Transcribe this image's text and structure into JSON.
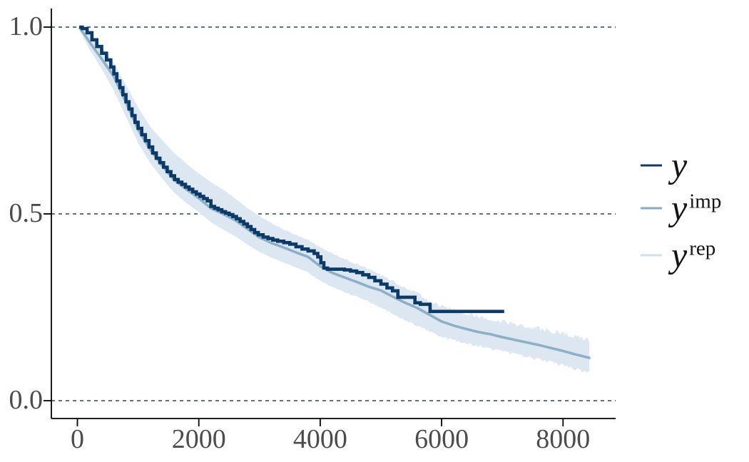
{
  "figure": {
    "background": "#ffffff",
    "axes": {
      "y": {
        "ticks": [
          {
            "label": "1.0",
            "value": 1.0
          },
          {
            "label": "0.5",
            "value": 0.5
          },
          {
            "label": "0.0",
            "value": 0.0
          }
        ]
      },
      "x": {
        "ticks": [
          {
            "label": "0",
            "value": 0
          },
          {
            "label": "2000",
            "value": 2000
          },
          {
            "label": "4000",
            "value": 4000
          },
          {
            "label": "6000",
            "value": 6000
          },
          {
            "label": "8000",
            "value": 8000
          }
        ]
      }
    },
    "legend": {
      "items": [
        {
          "base": "y",
          "sup": "",
          "color": "#16395f"
        },
        {
          "base": "y",
          "sup": "imp",
          "color": "#85aac6"
        },
        {
          "base": "y",
          "sup": "rep",
          "color": "#cfdfee"
        }
      ]
    },
    "colors": {
      "dark_line": "#0c3a68",
      "imputed_line": "#8cb0c7",
      "ribbon": "#dce7f2",
      "gridline": "#24446b",
      "axis": "#000000",
      "tick_text": "#4c4c4c"
    }
  },
  "chart_data": {
    "type": "line",
    "title": "",
    "xlabel": "",
    "ylabel": "",
    "xlim": [
      -430,
      8880
    ],
    "ylim": [
      -0.05,
      1.05
    ],
    "x_ticks": [
      0,
      2000,
      4000,
      6000,
      8000
    ],
    "y_ticks": [
      0.0,
      0.5,
      1.0
    ],
    "grid": "dashed horizontal at y = 0.0, 0.5, 1.0",
    "legend_position": "right-center",
    "series": [
      {
        "name": "y",
        "kind": "step",
        "color": "#0c3a68",
        "width": 4.6,
        "points": [
          [
            30,
            1.0
          ],
          [
            80,
            0.996
          ],
          [
            160,
            0.985
          ],
          [
            240,
            0.966
          ],
          [
            320,
            0.948
          ],
          [
            400,
            0.93
          ],
          [
            480,
            0.912
          ],
          [
            550,
            0.893
          ],
          [
            600,
            0.875
          ],
          [
            650,
            0.856
          ],
          [
            700,
            0.838
          ],
          [
            750,
            0.819
          ],
          [
            800,
            0.8
          ],
          [
            850,
            0.781
          ],
          [
            900,
            0.763
          ],
          [
            950,
            0.745
          ],
          [
            1000,
            0.729
          ],
          [
            1060,
            0.712
          ],
          [
            1120,
            0.696
          ],
          [
            1180,
            0.679
          ],
          [
            1240,
            0.663
          ],
          [
            1300,
            0.649
          ],
          [
            1360,
            0.637
          ],
          [
            1420,
            0.625
          ],
          [
            1480,
            0.613
          ],
          [
            1540,
            0.602
          ],
          [
            1600,
            0.592
          ],
          [
            1660,
            0.585
          ],
          [
            1720,
            0.579
          ],
          [
            1780,
            0.572
          ],
          [
            1840,
            0.566
          ],
          [
            1900,
            0.559
          ],
          [
            1960,
            0.553
          ],
          [
            2020,
            0.547
          ],
          [
            2080,
            0.541
          ],
          [
            2140,
            0.535
          ],
          [
            2200,
            0.52
          ],
          [
            2260,
            0.515
          ],
          [
            2320,
            0.511
          ],
          [
            2380,
            0.506
          ],
          [
            2440,
            0.502
          ],
          [
            2500,
            0.498
          ],
          [
            2560,
            0.493
          ],
          [
            2620,
            0.487
          ],
          [
            2680,
            0.48
          ],
          [
            2740,
            0.473
          ],
          [
            2800,
            0.466
          ],
          [
            2860,
            0.458
          ],
          [
            2920,
            0.45
          ],
          [
            2980,
            0.444
          ],
          [
            3060,
            0.438
          ],
          [
            3140,
            0.434
          ],
          [
            3220,
            0.43
          ],
          [
            3300,
            0.427
          ],
          [
            3400,
            0.423
          ],
          [
            3500,
            0.419
          ],
          [
            3600,
            0.412
          ],
          [
            3700,
            0.406
          ],
          [
            3800,
            0.401
          ],
          [
            3900,
            0.394
          ],
          [
            3960,
            0.385
          ],
          [
            4010,
            0.369
          ],
          [
            4060,
            0.355
          ],
          [
            4120,
            0.352
          ],
          [
            4400,
            0.35
          ],
          [
            4500,
            0.347
          ],
          [
            4600,
            0.343
          ],
          [
            4700,
            0.337
          ],
          [
            4800,
            0.33
          ],
          [
            4900,
            0.321
          ],
          [
            5000,
            0.312
          ],
          [
            5100,
            0.302
          ],
          [
            5190,
            0.294
          ],
          [
            5280,
            0.277
          ],
          [
            5560,
            0.262
          ],
          [
            5650,
            0.258
          ],
          [
            5810,
            0.239
          ],
          [
            7030,
            0.239
          ]
        ]
      },
      {
        "name": "y^imp",
        "kind": "line",
        "color": "#8cb0c7",
        "width": 3.6,
        "points": [
          [
            30,
            1.0
          ],
          [
            200,
            0.96
          ],
          [
            400,
            0.915
          ],
          [
            600,
            0.868
          ],
          [
            800,
            0.798
          ],
          [
            1000,
            0.726
          ],
          [
            1200,
            0.672
          ],
          [
            1400,
            0.628
          ],
          [
            1600,
            0.59
          ],
          [
            1800,
            0.565
          ],
          [
            2000,
            0.542
          ],
          [
            2200,
            0.515
          ],
          [
            2400,
            0.5
          ],
          [
            2600,
            0.483
          ],
          [
            2800,
            0.46
          ],
          [
            3000,
            0.437
          ],
          [
            3200,
            0.422
          ],
          [
            3400,
            0.41
          ],
          [
            3600,
            0.397
          ],
          [
            3800,
            0.385
          ],
          [
            4000,
            0.36
          ],
          [
            4200,
            0.342
          ],
          [
            4400,
            0.33
          ],
          [
            4600,
            0.318
          ],
          [
            4800,
            0.305
          ],
          [
            5000,
            0.295
          ],
          [
            5200,
            0.278
          ],
          [
            5400,
            0.262
          ],
          [
            5600,
            0.248
          ],
          [
            5800,
            0.23
          ],
          [
            6000,
            0.212
          ],
          [
            6200,
            0.201
          ],
          [
            6400,
            0.192
          ],
          [
            6600,
            0.184
          ],
          [
            6800,
            0.178
          ],
          [
            7000,
            0.17
          ],
          [
            7200,
            0.163
          ],
          [
            7400,
            0.156
          ],
          [
            7600,
            0.149
          ],
          [
            7800,
            0.141
          ],
          [
            8000,
            0.133
          ],
          [
            8200,
            0.124
          ],
          [
            8450,
            0.114
          ]
        ]
      },
      {
        "name": "y^rep",
        "kind": "band",
        "color": "#dce7f2",
        "points_x_upper_lower": [
          [
            30,
            1.0,
            0.993
          ],
          [
            200,
            0.98,
            0.94
          ],
          [
            400,
            0.948,
            0.888
          ],
          [
            600,
            0.905,
            0.83
          ],
          [
            800,
            0.845,
            0.76
          ],
          [
            1000,
            0.785,
            0.69
          ],
          [
            1200,
            0.733,
            0.636
          ],
          [
            1400,
            0.697,
            0.594
          ],
          [
            1600,
            0.662,
            0.556
          ],
          [
            1800,
            0.634,
            0.528
          ],
          [
            2000,
            0.608,
            0.505
          ],
          [
            2200,
            0.585,
            0.478
          ],
          [
            2400,
            0.565,
            0.458
          ],
          [
            2600,
            0.541,
            0.44
          ],
          [
            2800,
            0.515,
            0.418
          ],
          [
            3000,
            0.493,
            0.398
          ],
          [
            3200,
            0.474,
            0.383
          ],
          [
            3400,
            0.458,
            0.37
          ],
          [
            3600,
            0.443,
            0.357
          ],
          [
            3800,
            0.43,
            0.344
          ],
          [
            4000,
            0.41,
            0.322
          ],
          [
            4200,
            0.392,
            0.305
          ],
          [
            4400,
            0.378,
            0.292
          ],
          [
            4600,
            0.364,
            0.28
          ],
          [
            4800,
            0.35,
            0.266
          ],
          [
            5000,
            0.334,
            0.251
          ],
          [
            5200,
            0.317,
            0.233
          ],
          [
            5400,
            0.3,
            0.216
          ],
          [
            5600,
            0.285,
            0.202
          ],
          [
            5800,
            0.262,
            0.187
          ],
          [
            6000,
            0.25,
            0.173
          ],
          [
            6200,
            0.24,
            0.164
          ],
          [
            6400,
            0.23,
            0.156
          ],
          [
            6600,
            0.222,
            0.148
          ],
          [
            6800,
            0.215,
            0.141
          ],
          [
            7000,
            0.208,
            0.134
          ],
          [
            7200,
            0.201,
            0.127
          ],
          [
            7400,
            0.195,
            0.12
          ],
          [
            7600,
            0.188,
            0.113
          ],
          [
            7800,
            0.181,
            0.106
          ],
          [
            8000,
            0.175,
            0.098
          ],
          [
            8200,
            0.168,
            0.088
          ],
          [
            8450,
            0.158,
            0.076
          ]
        ]
      }
    ]
  }
}
